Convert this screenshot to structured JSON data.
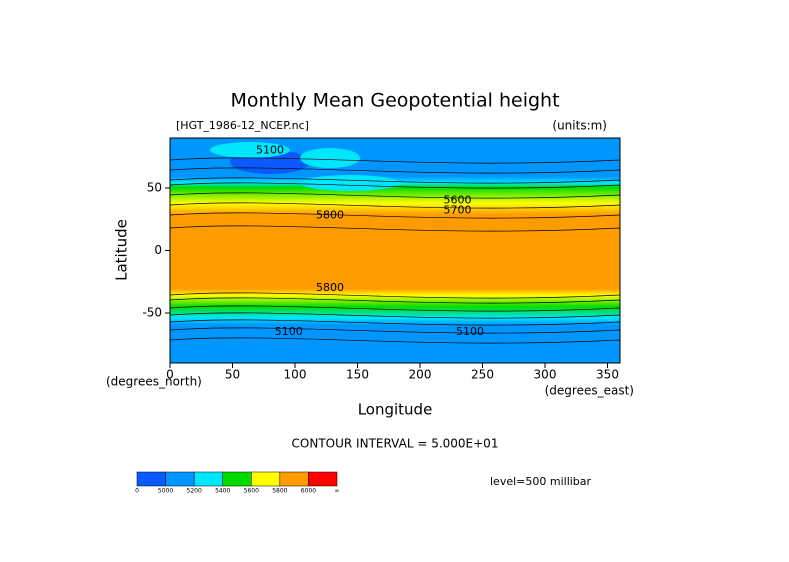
{
  "chart_data": {
    "type": "contour",
    "title": "Monthly Mean Geopotential height",
    "subtitle_left": "[HGT_1986-12_NCEP.nc]",
    "subtitle_right": "(units:m)",
    "x_label": "Longitude",
    "y_label": "Latitude",
    "x_unit": "(degrees_east)",
    "y_unit": "(degrees_north)",
    "xlim": [
      0,
      360
    ],
    "xticks": [
      0,
      50,
      100,
      150,
      200,
      250,
      300,
      350
    ],
    "ylim": [
      -90,
      90
    ],
    "yticks": [
      -50,
      0,
      50
    ],
    "contour_interval": "CONTOUR INTERVAL = 5.000E+01",
    "level": "level=500 millibar",
    "contour_labels": [
      "5100",
      "5100",
      "5100",
      "5600",
      "5700",
      "5800",
      "5800"
    ],
    "colorbar": {
      "colors": [
        "#0a5aff",
        "#0096ff",
        "#00e6ff",
        "#00dc00",
        "#ffff00",
        "#ff9c00",
        "#ff0000"
      ],
      "labels": [
        "0",
        "5000",
        "5200",
        "5400",
        "5600",
        "5800",
        "6000",
        "∞"
      ]
    }
  }
}
